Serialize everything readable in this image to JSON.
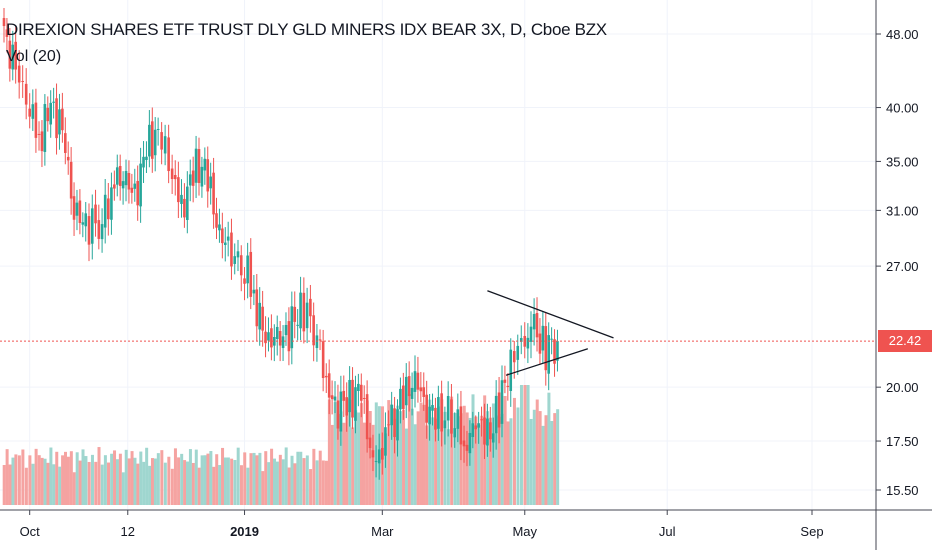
{
  "chart_data": {
    "type": "candlestick",
    "title": "DIREXION SHARES ETF TRUST DLY GLD MINERS IDX BEAR 3X, D, Cboe BZX",
    "indicator_label": "Vol (20)",
    "y_scale": "log",
    "y_ticks": [
      "48.00",
      "40.00",
      "35.00",
      "31.00",
      "27.00",
      "22.42",
      "20.00",
      "17.50",
      "15.50"
    ],
    "y_tick_values": [
      48,
      40,
      35,
      31,
      27,
      20,
      17.5,
      15.5
    ],
    "x_ticks": [
      "Oct",
      "12",
      "2019",
      "Mar",
      "May",
      "Jul",
      "Sep"
    ],
    "last_price": 22.42,
    "last_price_label": "22.42",
    "colors": {
      "up": "#26a69a",
      "down": "#ef5350",
      "vol_up": "#9fd6cf",
      "vol_down": "#f5a3a1",
      "grid": "#f0f3fa",
      "text": "#131722"
    },
    "series": [
      {
        "date": "2018-09-20",
        "close": 48.0
      },
      {
        "date": "2018-09-25",
        "close": 44.0
      },
      {
        "date": "2018-10-01",
        "close": 40.0
      },
      {
        "date": "2018-10-05",
        "close": 37.0
      },
      {
        "date": "2018-10-10",
        "close": 40.0
      },
      {
        "date": "2018-10-15",
        "close": 38.0
      },
      {
        "date": "2018-10-20",
        "close": 31.0
      },
      {
        "date": "2018-10-25",
        "close": 30.0
      },
      {
        "date": "2018-11-01",
        "close": 30.0
      },
      {
        "date": "2018-11-05",
        "close": 33.0
      },
      {
        "date": "2018-11-10",
        "close": 34.0
      },
      {
        "date": "2018-11-15",
        "close": 32.0
      },
      {
        "date": "2018-11-20",
        "close": 36.0
      },
      {
        "date": "2018-11-25",
        "close": 38.0
      },
      {
        "date": "2018-12-01",
        "close": 34.0
      },
      {
        "date": "2018-12-05",
        "close": 31.0
      },
      {
        "date": "2018-12-10",
        "close": 34.0
      },
      {
        "date": "2018-12-15",
        "close": 35.0
      },
      {
        "date": "2018-12-20",
        "close": 30.0
      },
      {
        "date": "2018-12-25",
        "close": 28.0
      },
      {
        "date": "2019-01-01",
        "close": 27.0
      },
      {
        "date": "2019-01-05",
        "close": 25.0
      },
      {
        "date": "2019-01-10",
        "close": 22.5
      },
      {
        "date": "2019-01-15",
        "close": 22.5
      },
      {
        "date": "2019-01-20",
        "close": 23.0
      },
      {
        "date": "2019-01-25",
        "close": 24.5
      },
      {
        "date": "2019-02-01",
        "close": 23.0
      },
      {
        "date": "2019-02-05",
        "close": 20.0
      },
      {
        "date": "2019-02-10",
        "close": 19.0
      },
      {
        "date": "2019-02-15",
        "close": 19.5
      },
      {
        "date": "2019-02-20",
        "close": 19.7
      },
      {
        "date": "2019-02-25",
        "close": 16.5
      },
      {
        "date": "2019-03-01",
        "close": 17.5
      },
      {
        "date": "2019-03-05",
        "close": 18.2
      },
      {
        "date": "2019-03-10",
        "close": 19.5
      },
      {
        "date": "2019-03-15",
        "close": 20.5
      },
      {
        "date": "2019-03-20",
        "close": 19.0
      },
      {
        "date": "2019-03-25",
        "close": 18.5
      },
      {
        "date": "2019-04-01",
        "close": 18.8
      },
      {
        "date": "2019-04-05",
        "close": 17.0
      },
      {
        "date": "2019-04-10",
        "close": 18.5
      },
      {
        "date": "2019-04-15",
        "close": 17.6
      },
      {
        "date": "2019-04-20",
        "close": 19.0
      },
      {
        "date": "2019-04-25",
        "close": 21.5
      },
      {
        "date": "2019-05-01",
        "close": 22.5
      },
      {
        "date": "2019-05-05",
        "close": 23.0
      },
      {
        "date": "2019-05-10",
        "close": 22.0
      },
      {
        "date": "2019-05-15",
        "close": 22.42
      }
    ],
    "trendlines": [
      {
        "from": {
          "date": "2019-04-15",
          "price": 25.4
        },
        "to": {
          "date": "2019-06-08",
          "price": 22.6
        }
      },
      {
        "from": {
          "date": "2019-04-23",
          "price": 20.6
        },
        "to": {
          "date": "2019-05-28",
          "price": 22.0
        }
      }
    ]
  }
}
